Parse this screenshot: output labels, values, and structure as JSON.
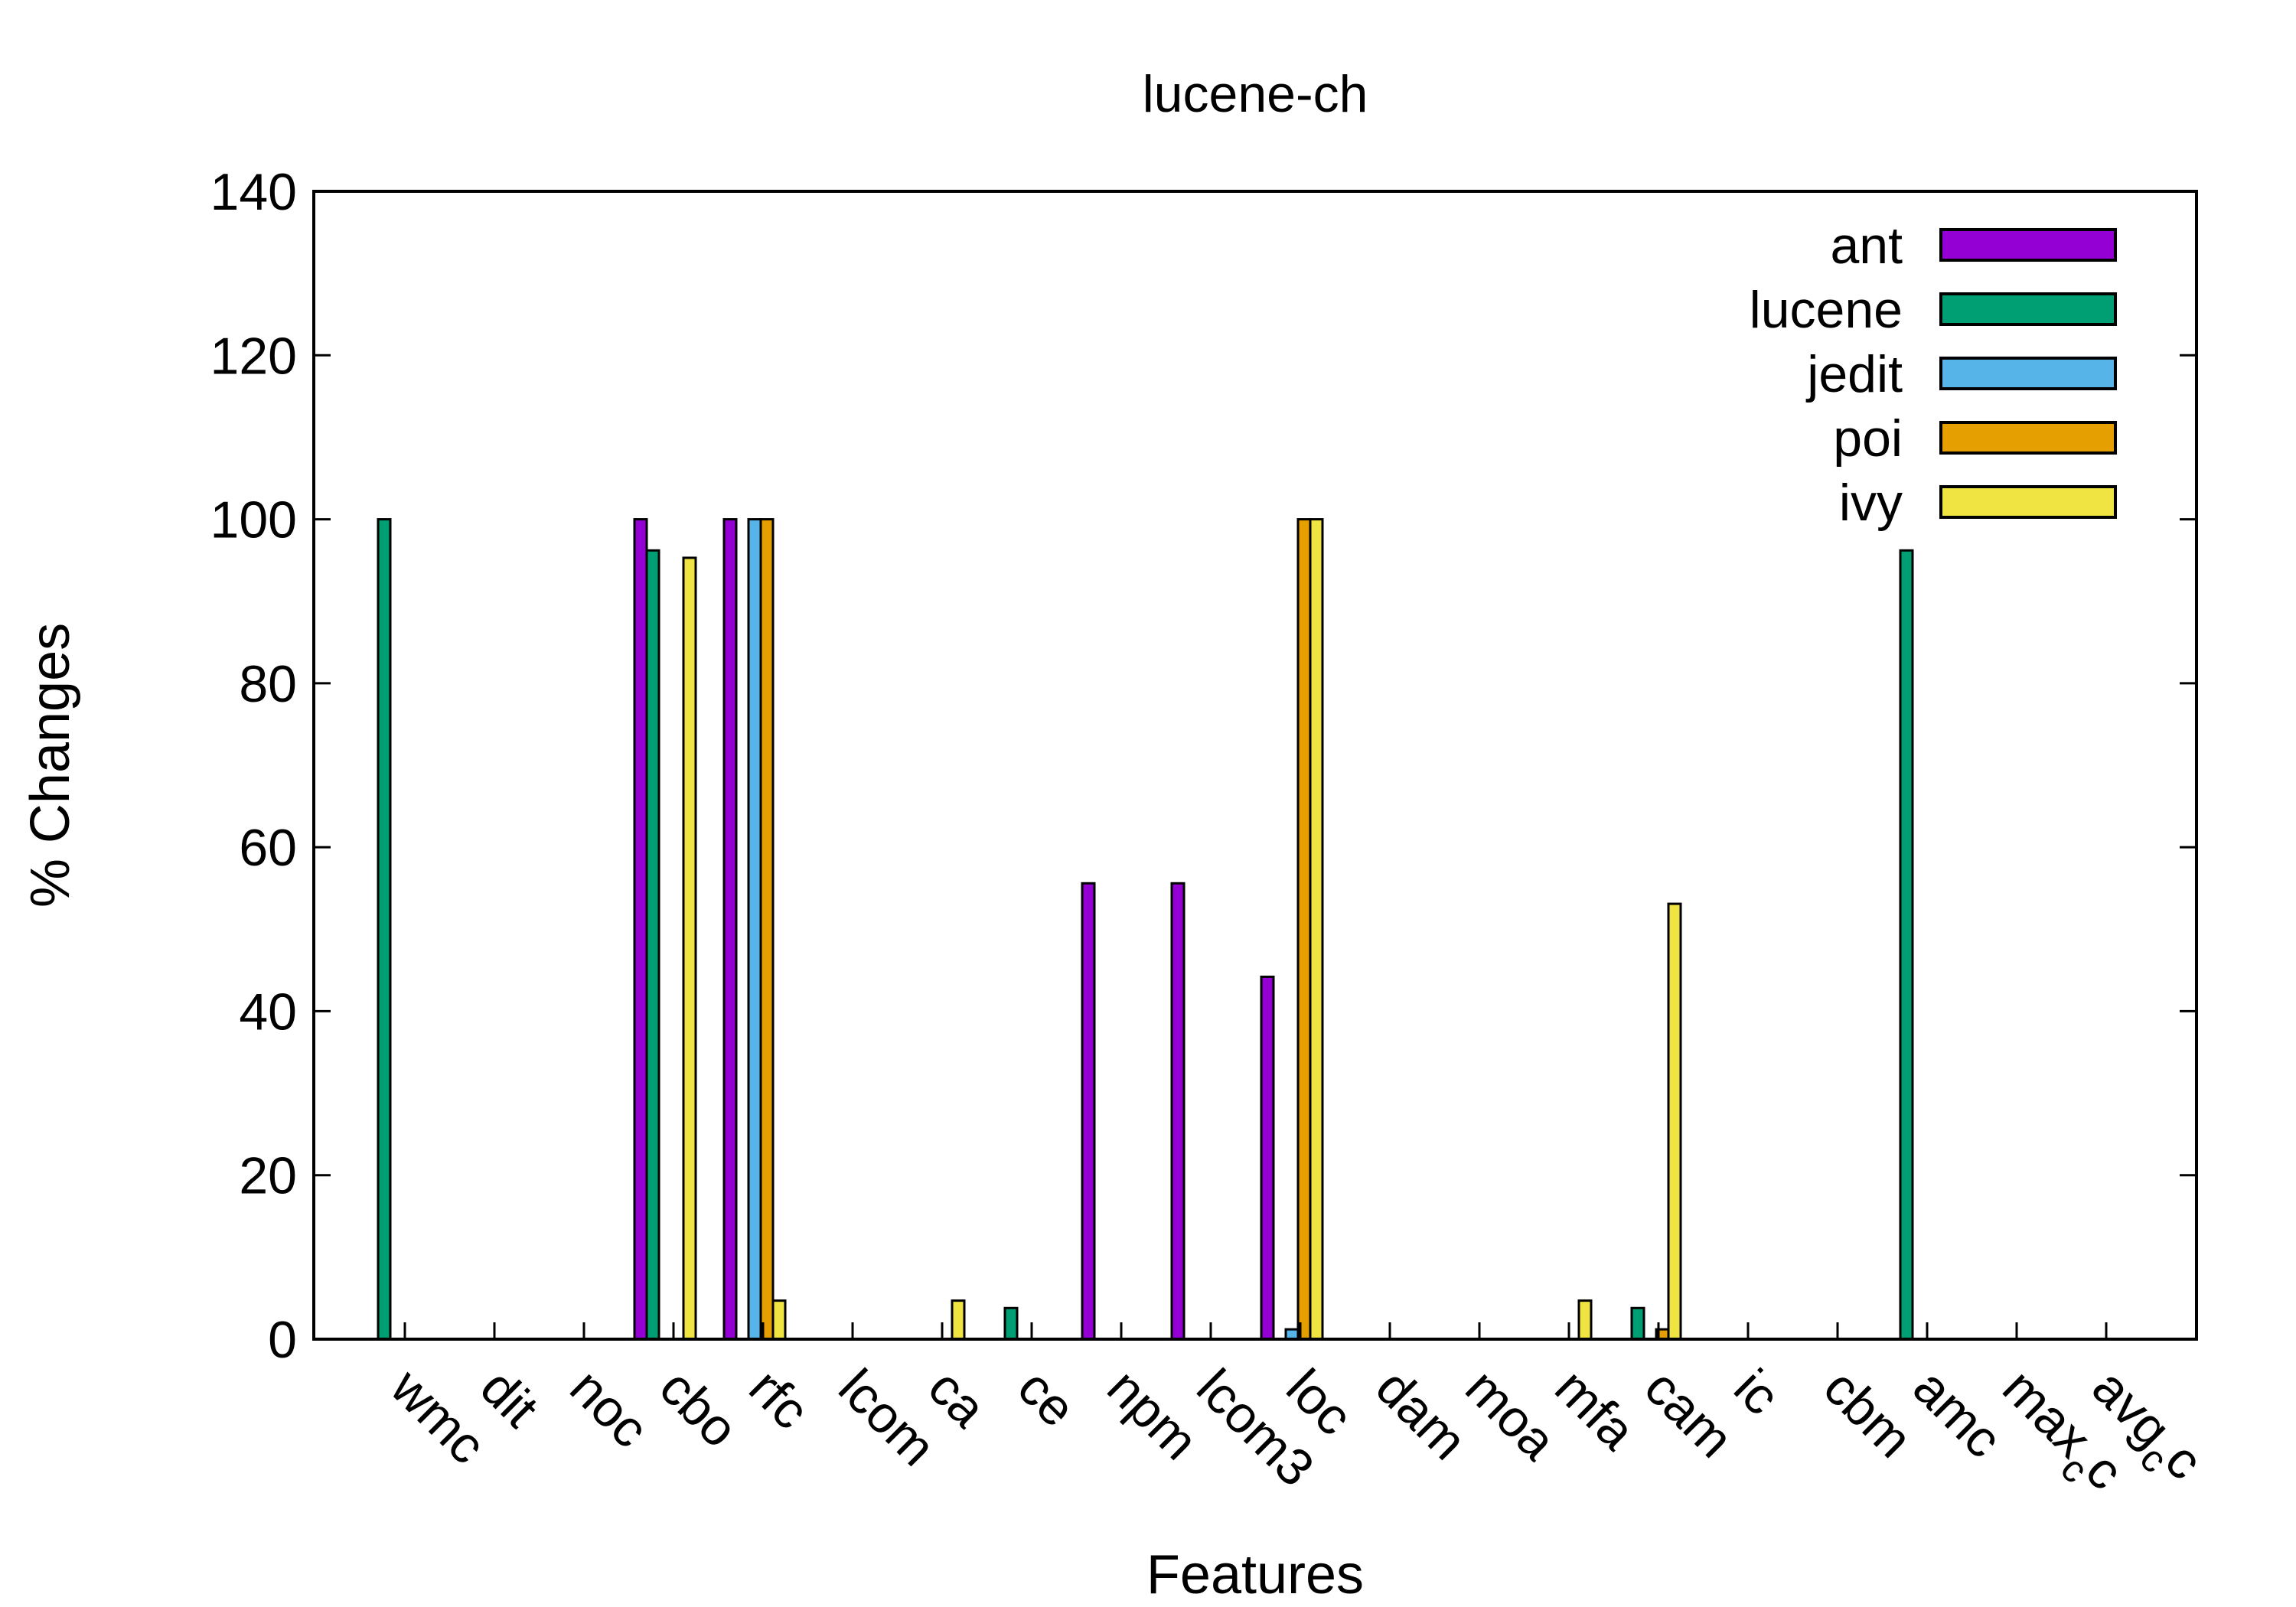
{
  "chart_data": {
    "type": "bar",
    "title": "lucene-ch",
    "xlabel": "Features",
    "ylabel": "% Changes",
    "ylim": [
      0,
      140
    ],
    "yticks": [
      0,
      20,
      40,
      60,
      80,
      100,
      120,
      140
    ],
    "grid": false,
    "legend_position": "top-right",
    "categories": [
      {
        "main": "wmc",
        "sub": ""
      },
      {
        "main": "dit",
        "sub": ""
      },
      {
        "main": "noc",
        "sub": ""
      },
      {
        "main": "cbo",
        "sub": ""
      },
      {
        "main": "rfc",
        "sub": ""
      },
      {
        "main": "lcom",
        "sub": ""
      },
      {
        "main": "ca",
        "sub": ""
      },
      {
        "main": "ce",
        "sub": ""
      },
      {
        "main": "npm",
        "sub": ""
      },
      {
        "main": "lcom3",
        "sub": ""
      },
      {
        "main": "loc",
        "sub": ""
      },
      {
        "main": "dam",
        "sub": ""
      },
      {
        "main": "moa",
        "sub": ""
      },
      {
        "main": "mfa",
        "sub": ""
      },
      {
        "main": "cam",
        "sub": ""
      },
      {
        "main": "ic",
        "sub": ""
      },
      {
        "main": "cbm",
        "sub": ""
      },
      {
        "main": "amc",
        "sub": ""
      },
      {
        "main": "max",
        "sub": "c",
        "tail": "c"
      },
      {
        "main": "avg",
        "sub": "c",
        "tail": "c"
      }
    ],
    "series": [
      {
        "name": "ant",
        "color": "#9400d3",
        "values": [
          0,
          0,
          0,
          100,
          100,
          0,
          0,
          0,
          55.6,
          55.6,
          44.2,
          0,
          0,
          0,
          0,
          0,
          0,
          0,
          0,
          0
        ]
      },
      {
        "name": "lucene",
        "color": "#009e73",
        "values": [
          100,
          0,
          0,
          96.2,
          0,
          0,
          0,
          3.8,
          0,
          0,
          0,
          0,
          0,
          0,
          3.8,
          0,
          0,
          96.2,
          0,
          0
        ]
      },
      {
        "name": "jedit",
        "color": "#56b4e9",
        "values": [
          0,
          0,
          0,
          0,
          100,
          0,
          0,
          0,
          0,
          0,
          1.2,
          0,
          0,
          0,
          0,
          0,
          0,
          0,
          0,
          0
        ]
      },
      {
        "name": "poi",
        "color": "#e69f00",
        "values": [
          0,
          0,
          0,
          0,
          100,
          0,
          0,
          0,
          0,
          0,
          100,
          0,
          0,
          0,
          1.2,
          0,
          0,
          0,
          0,
          0
        ]
      },
      {
        "name": "ivy",
        "color": "#f0e442",
        "values": [
          0,
          0,
          0,
          95.3,
          4.7,
          0,
          4.7,
          0,
          0,
          0,
          100,
          0,
          0,
          4.7,
          53.1,
          0,
          0,
          0,
          0,
          0
        ]
      }
    ]
  }
}
